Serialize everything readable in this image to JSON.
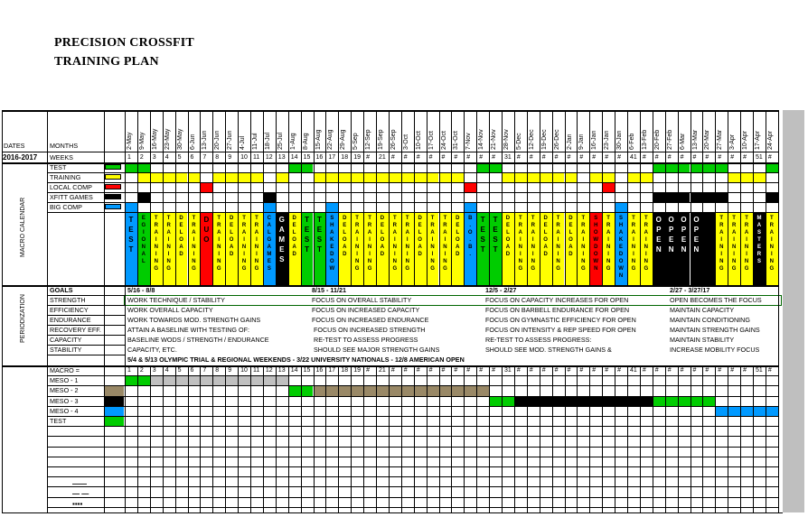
{
  "title": {
    "line1": "PRECISION CROSSFIT",
    "line2": "TRAINING PLAN"
  },
  "header": {
    "dates": "DATES",
    "months": "MONTHS",
    "year": "2016-2017",
    "weeks": "WEEKS"
  },
  "colors": {
    "green": "#00cc00",
    "yellow": "#ffff00",
    "red": "#ff0000",
    "black": "#000000",
    "blue": "#0099ff",
    "gray": "#c0c0c0",
    "olive": "#998866",
    "darkgray": "#888888"
  },
  "dates": [
    "2-May",
    "9-May",
    "16-May",
    "23-May",
    "30-May",
    "6-Jun",
    "13-Jun",
    "20-Jun",
    "27-Jun",
    "4-Jul",
    "11-Jul",
    "18-Jul",
    "25-Jul",
    "1-Aug",
    "8-Aug",
    "15-Aug",
    "22-Aug",
    "29-Aug",
    "5-Sep",
    "12-Sep",
    "19-Sep",
    "26-Sep",
    "3-Oct",
    "10-Oct",
    "17-Oct",
    "24-Oct",
    "31-Oct",
    "7-Nov",
    "14-Nov",
    "21-Nov",
    "28-Nov",
    "5-Dec",
    "12-Dec",
    "19-Dec",
    "26-Dec",
    "2-Jan",
    "9-Jan",
    "16-Jan",
    "23-Jan",
    "30-Jan",
    "6-Feb",
    "13-Feb",
    "20-Feb",
    "27-Feb",
    "6-Mar",
    "13-Mar",
    "20-Mar",
    "27-Mar",
    "3-Apr",
    "10-Apr",
    "17-Apr",
    "24-Apr"
  ],
  "week_labels": [
    "1",
    "2",
    "3",
    "4",
    "5",
    "6",
    "7",
    "8",
    "9",
    "10",
    "11",
    "12",
    "13",
    "14",
    "15",
    "16",
    "17",
    "18",
    "19",
    "#",
    "21",
    "#",
    "#",
    "#",
    "#",
    "#",
    "#",
    "#",
    "#",
    "#",
    "31",
    "#",
    "#",
    "#",
    "#",
    "#",
    "#",
    "#",
    "#",
    "#",
    "41",
    "#",
    "#",
    "#",
    "#",
    "#",
    "#",
    "#",
    "#",
    "#",
    "51",
    "#"
  ],
  "macro_calendar": {
    "label": "MACRO CALENDAR",
    "legend": [
      {
        "label": "TEST",
        "color": "green"
      },
      {
        "label": "TRAINING",
        "color": "yellow"
      },
      {
        "label": "LOCAL COMP",
        "color": "red"
      },
      {
        "label": "XFITT GAMES",
        "color": "black"
      },
      {
        "label": "BIG COMP",
        "color": "blue"
      }
    ],
    "rows": {
      "test": [
        0,
        1,
        13,
        14,
        28,
        29,
        42,
        43,
        44,
        45,
        46,
        47,
        51
      ],
      "training": [
        1,
        2,
        3,
        4,
        5,
        7,
        8,
        9,
        10,
        12,
        15,
        16,
        17,
        18,
        19,
        20,
        21,
        22,
        23,
        24,
        25,
        26,
        30,
        31,
        32,
        33,
        34,
        35,
        37,
        38,
        40,
        41,
        48,
        49,
        50
      ],
      "local_comp": [
        6,
        27,
        38
      ],
      "xfitt_games": [
        1,
        11,
        42,
        43,
        44,
        45,
        46,
        47,
        51
      ],
      "big_comp": [
        0,
        11,
        16,
        27,
        39
      ]
    },
    "blocks": [
      {
        "col": 0,
        "color": "blue",
        "text": "T E S T"
      },
      {
        "col": 1,
        "color": "green",
        "text": "E G I O N A L"
      },
      {
        "col": 2,
        "color": "yellow",
        "text": "T R A I N I N G"
      },
      {
        "col": 3,
        "color": "yellow",
        "text": "T R A I N I N G"
      },
      {
        "col": 4,
        "color": "yellow",
        "text": "D E L O A D"
      },
      {
        "col": 5,
        "color": "yellow",
        "text": "T R A I N I N G"
      },
      {
        "col": 6,
        "color": "red",
        "text": "D U O"
      },
      {
        "col": 7,
        "color": "yellow",
        "text": "T R A I N I N G"
      },
      {
        "col": 8,
        "color": "yellow",
        "text": "D E L O A D"
      },
      {
        "col": 9,
        "color": "yellow",
        "text": "T R A I N I N G"
      },
      {
        "col": 10,
        "color": "yellow",
        "text": "T R A I N I N G"
      },
      {
        "col": 11,
        "color": "blue",
        "text": "C A L G A M E S"
      },
      {
        "col": 12,
        "color": "black",
        "text": "G A M E S"
      },
      {
        "col": 13,
        "color": "yellow",
        "text": "D E L O A D"
      },
      {
        "col": 14,
        "color": "green",
        "text": "T E S T"
      },
      {
        "col": 15,
        "color": "green",
        "text": "T E S T"
      },
      {
        "col": 16,
        "color": "blue",
        "text": "S H A K E D O W"
      },
      {
        "col": 17,
        "color": "yellow",
        "text": "D E L O A D"
      },
      {
        "col": 18,
        "color": "yellow",
        "text": "T R A I N I N G"
      },
      {
        "col": 19,
        "color": "yellow",
        "text": "T R A I N I N G"
      },
      {
        "col": 20,
        "color": "yellow",
        "text": "D E L O A D"
      },
      {
        "col": 21,
        "color": "yellow",
        "text": "T R A I N I N G"
      },
      {
        "col": 22,
        "color": "yellow",
        "text": "T R A I N I N G"
      },
      {
        "col": 23,
        "color": "yellow",
        "text": "D E L O A D"
      },
      {
        "col": 24,
        "color": "yellow",
        "text": "T R A I N I N G"
      },
      {
        "col": 25,
        "color": "yellow",
        "text": "T R A I N I N G"
      },
      {
        "col": 26,
        "color": "yellow",
        "text": "D E L O A D"
      },
      {
        "col": 27,
        "color": "blue",
        "text": "B . O . B ."
      },
      {
        "col": 28,
        "color": "green",
        "text": "T E S T"
      },
      {
        "col": 29,
        "color": "green",
        "text": "T E S T"
      },
      {
        "col": 30,
        "color": "yellow",
        "text": "D E L O A D"
      },
      {
        "col": 31,
        "color": "yellow",
        "text": "T R A I N I N G"
      },
      {
        "col": 32,
        "color": "yellow",
        "text": "T R A I N I N G"
      },
      {
        "col": 33,
        "color": "yellow",
        "text": "D E L O A D"
      },
      {
        "col": 34,
        "color": "yellow",
        "text": "T R A I N I N G"
      },
      {
        "col": 35,
        "color": "yellow",
        "text": "D E L O A D"
      },
      {
        "col": 36,
        "color": "yellow",
        "text": "T R A I N I N G"
      },
      {
        "col": 37,
        "color": "red",
        "text": "S H O W D O W N"
      },
      {
        "col": 38,
        "color": "yellow",
        "text": "T R A I N I N G"
      },
      {
        "col": 39,
        "color": "blue",
        "text": "S H A K E D O W N"
      },
      {
        "col": 40,
        "color": "yellow",
        "text": "T R A I N I N G"
      },
      {
        "col": 41,
        "color": "yellow",
        "text": "T R A I N I N G"
      },
      {
        "col": 42,
        "color": "black",
        "text": "O P E N"
      },
      {
        "col": 43,
        "color": "black",
        "text": "O P E N"
      },
      {
        "col": 44,
        "color": "black",
        "text": "O P E N"
      },
      {
        "col": 45,
        "color": "black",
        "text": "O P E N"
      },
      {
        "col": 46,
        "color": "black",
        "text": ""
      },
      {
        "col": 47,
        "color": "yellow",
        "text": "T R A I N I N G"
      },
      {
        "col": 48,
        "color": "yellow",
        "text": "T R A I N I N G"
      },
      {
        "col": 49,
        "color": "yellow",
        "text": "T R A I N I N G"
      },
      {
        "col": 50,
        "color": "black",
        "text": "M A S T E R S"
      },
      {
        "col": 51,
        "color": "yellow",
        "text": "T R A I N I N G"
      }
    ]
  },
  "periodization": {
    "label": "PERIODIZATION",
    "rows": [
      "GOALS",
      "STRENGTH",
      "EFFICIENCY",
      "ENDURANCE",
      "RECOVERY EFF.",
      "CAPACITY",
      "STABILITY"
    ],
    "goals": [
      "5/16 - 8/8",
      "8/15 - 11/21",
      "12/5 - 2/27",
      "2/27 - 3/27/17"
    ],
    "phase1": [
      "WORK TECHNIQUE / STABILITY",
      "WORK OVERALL CAPACITY",
      "WORK TOWARDS MOD. STRENGTH GAINS",
      "ATTAIN A BASELINE WITH TESTING OF:",
      "BASELINE WODS / STRENGTH / ENDURANCE",
      "CAPACITY, ETC."
    ],
    "phase2": [
      "FOCUS ON OVERALL STABILITY",
      "FOCUS ON INCREASED CAPACITY",
      "FOCUS ON INCREASED ENDURANCE",
      "FOCUS ON INCREASED STRENGTH",
      "RE-TEST TO ASSESS PROGRESS",
      "SHOULD SEE MAJOR STRENGTH GAINS"
    ],
    "phase3": [
      "FOCUS ON CAPACITY INCREASES FOR OPEN",
      "FOCUS ON BARBELL ENDURANCE FOR OPEN",
      "FOCUS ON GYMNASTIC EFFICIENCY FOR OPEN",
      "FOCUS ON INTENSITY & REP SPEED FOR OPEN",
      "RE-TEST TO ASSESS PROGRESS:",
      "SHOULD SEE MOD. STRENGTH GAINS &"
    ],
    "phase4": [
      "OPEN BECOMES THE FOCUS",
      "MAINTAIN CAPACITY",
      "MAINTAIN CONDITIONING",
      "MAINTAIN STRENGTH GAINS",
      "MAINTAIN STABILITY",
      "INCREASE MOBILITY FOCUS"
    ],
    "note": "5/4 & 5/13 OLYMPIC TRIAL & REGIONAL WEEKENDS - 3/22 UNIVERSITY NATIONALS - 12/8 AMERICAN OPEN"
  },
  "meso": {
    "rows": [
      "MACRO =",
      "MESO - 1",
      "MESO - 2",
      "MESO - 3",
      "MESO - 4",
      "TEST"
    ],
    "swatches": [
      "",
      "",
      "olive",
      "black",
      "blue",
      "green"
    ],
    "bars": [
      {
        "row": 1,
        "start": 0,
        "end": 1,
        "color": "green"
      },
      {
        "row": 1,
        "start": 2,
        "end": 12,
        "color": "gray"
      },
      {
        "row": 2,
        "start": 13,
        "end": 14,
        "color": "green"
      },
      {
        "row": 2,
        "start": 15,
        "end": 28,
        "color": "olive"
      },
      {
        "row": 3,
        "start": 29,
        "end": 30,
        "color": "green"
      },
      {
        "row": 3,
        "start": 31,
        "end": 41,
        "color": "black"
      },
      {
        "row": 3,
        "start": 42,
        "end": 46,
        "color": "green"
      },
      {
        "row": 4,
        "start": 47,
        "end": 51,
        "color": "blue"
      }
    ],
    "footer_marks": [
      "——",
      "— —",
      "▪▪▪▪"
    ]
  }
}
